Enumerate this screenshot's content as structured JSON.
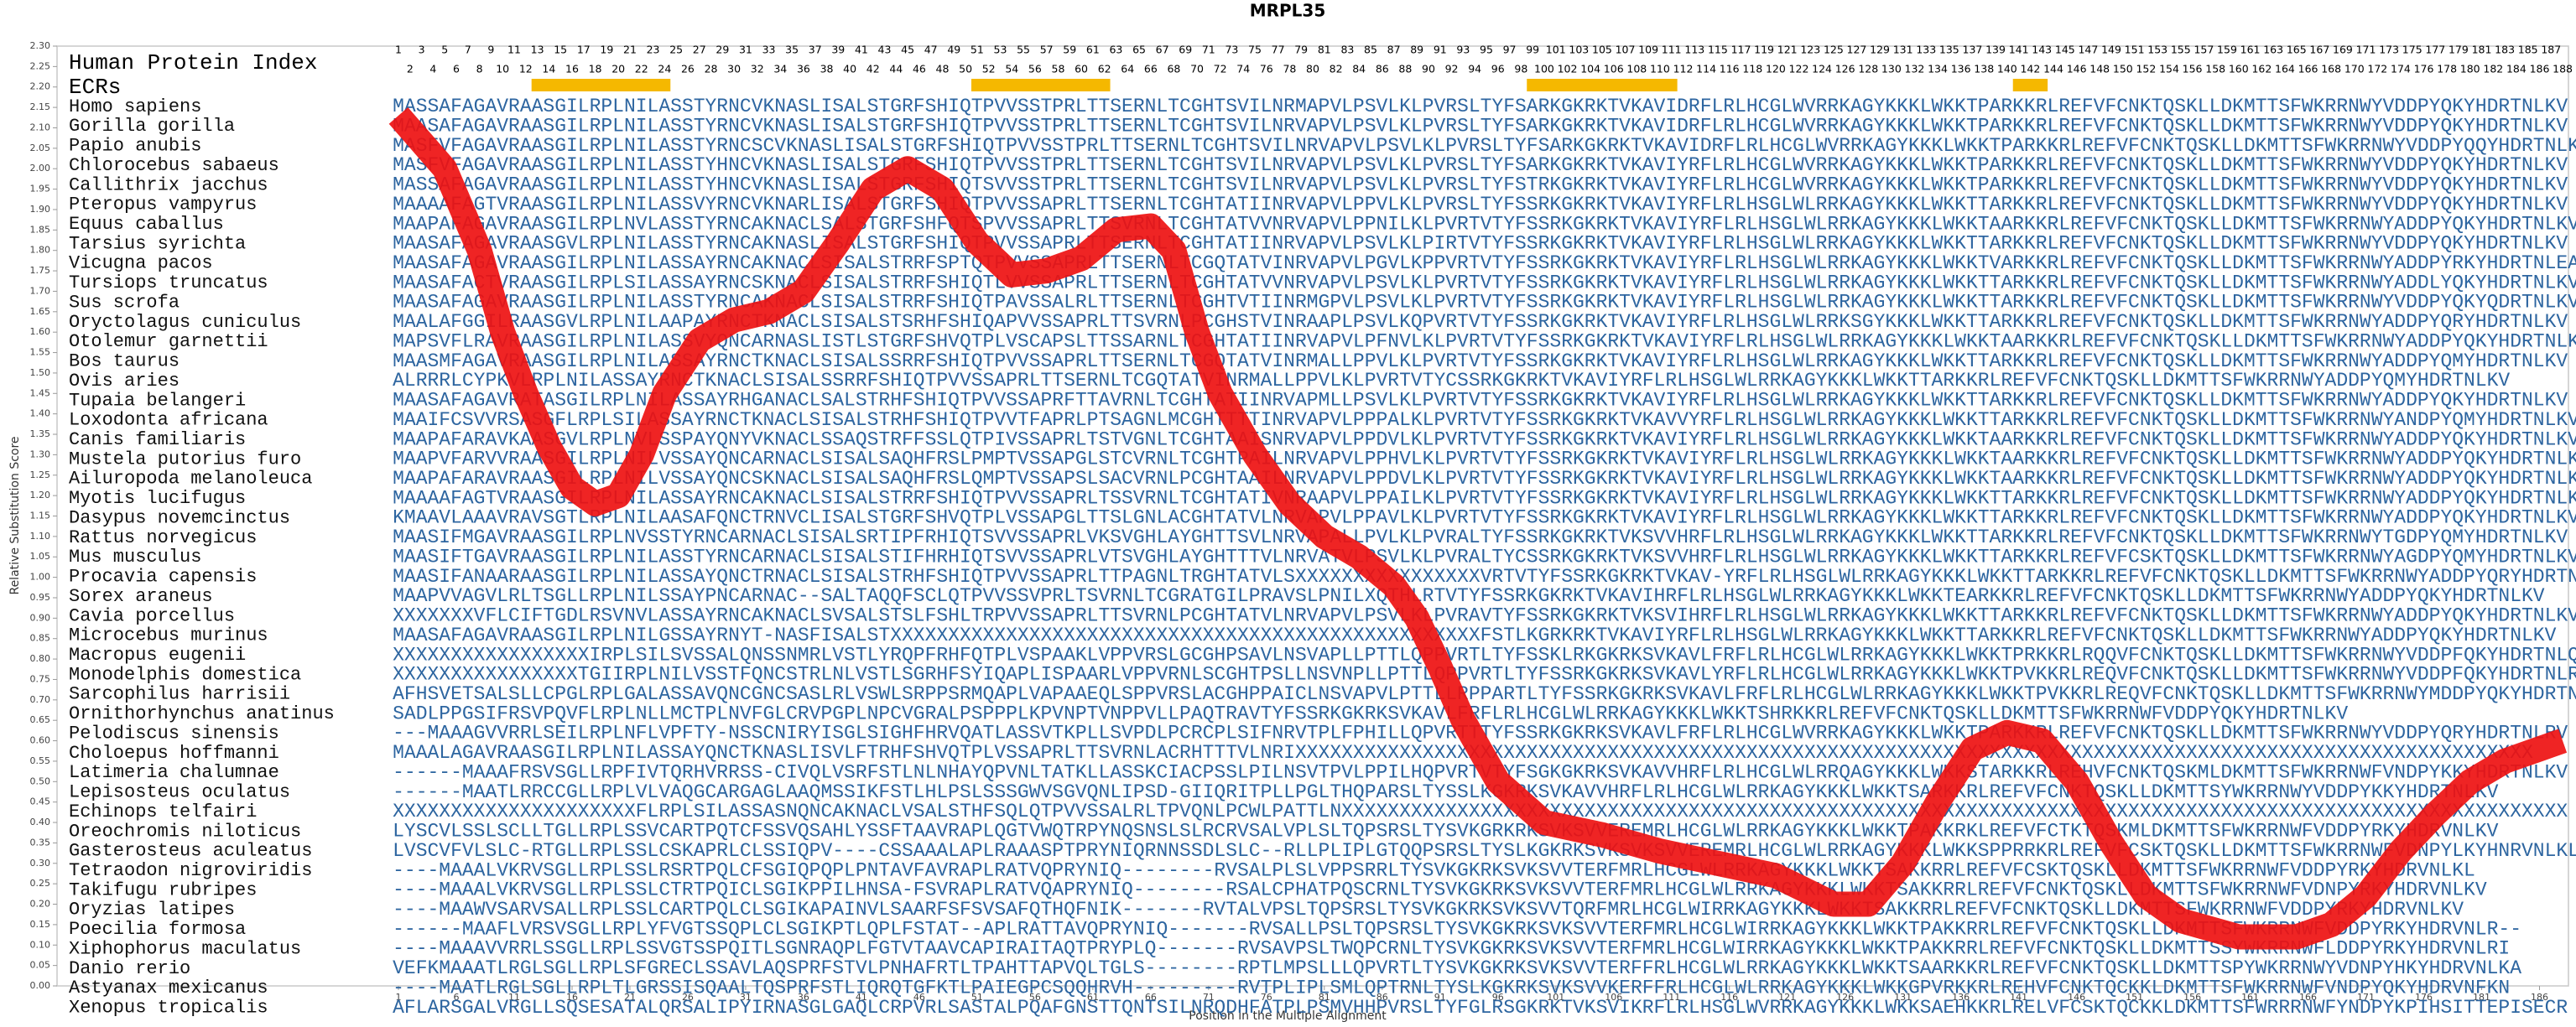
{
  "chart_data": {
    "type": "line",
    "title": "MRPL35",
    "xlabel": "Position in the Multiple Alignment",
    "ylabel": "Relative Substitution Score",
    "xlim": [
      -28.5,
      188.5
    ],
    "ylim": [
      0,
      2.3
    ],
    "xticks": [
      1,
      6,
      11,
      16,
      21,
      26,
      31,
      36,
      41,
      46,
      51,
      56,
      61,
      66,
      71,
      76,
      81,
      86,
      91,
      96,
      101,
      106,
      111,
      116,
      121,
      126,
      131,
      136,
      141,
      146,
      151,
      156,
      161,
      166,
      171,
      176,
      181,
      186
    ],
    "yticks": [
      {
        "value": 0,
        "label": "0.00"
      },
      {
        "value": 0.05,
        "label": "0.05"
      },
      {
        "value": 0.1,
        "label": "0.10"
      },
      {
        "value": 0.15,
        "label": "0.15"
      },
      {
        "value": 0.2,
        "label": "0.20"
      },
      {
        "value": 0.25,
        "label": "0.25"
      },
      {
        "value": 0.3,
        "label": "0.30"
      },
      {
        "value": 0.35,
        "label": "0.35"
      },
      {
        "value": 0.4,
        "label": "0.40"
      },
      {
        "value": 0.45,
        "label": "0.45"
      },
      {
        "value": 0.5,
        "label": "0.50"
      },
      {
        "value": 0.55,
        "label": "0.55"
      },
      {
        "value": 0.6,
        "label": "0.60"
      },
      {
        "value": 0.65,
        "label": "0.65"
      },
      {
        "value": 0.7,
        "label": "0.70"
      },
      {
        "value": 0.75,
        "label": "0.75"
      },
      {
        "value": 0.8,
        "label": "0.80"
      },
      {
        "value": 0.85,
        "label": "0.85"
      },
      {
        "value": 0.9,
        "label": "0.90"
      },
      {
        "value": 0.95,
        "label": "0.95"
      },
      {
        "value": 1,
        "label": "1.00"
      },
      {
        "value": 1.05,
        "label": "1.05"
      },
      {
        "value": 1.1,
        "label": "1.10"
      },
      {
        "value": 1.15,
        "label": "1.15"
      },
      {
        "value": 1.2,
        "label": "1.20"
      },
      {
        "value": 1.25,
        "label": "1.25"
      },
      {
        "value": 1.3,
        "label": "1.30"
      },
      {
        "value": 1.35,
        "label": "1.35"
      },
      {
        "value": 1.4,
        "label": "1.40"
      },
      {
        "value": 1.45,
        "label": "1.45"
      },
      {
        "value": 1.5,
        "label": "1.50"
      },
      {
        "value": 1.55,
        "label": "1.55"
      },
      {
        "value": 1.6,
        "label": "1.60"
      },
      {
        "value": 1.65,
        "label": "1.65"
      },
      {
        "value": 1.7,
        "label": "1.70"
      },
      {
        "value": 1.75,
        "label": "1.75"
      },
      {
        "value": 1.8,
        "label": "1.80"
      },
      {
        "value": 1.85,
        "label": "1.85"
      },
      {
        "value": 1.9,
        "label": "1.90"
      },
      {
        "value": 1.95,
        "label": "1.95"
      },
      {
        "value": 2,
        "label": "2.00"
      },
      {
        "value": 2.05,
        "label": "2.05"
      },
      {
        "value": 2.1,
        "label": "2.10"
      },
      {
        "value": 2.15,
        "label": "2.15"
      },
      {
        "value": 2.2,
        "label": "2.20"
      },
      {
        "value": 2.25,
        "label": "2.25"
      },
      {
        "value": 2.3,
        "label": "2.30"
      }
    ],
    "series": [
      {
        "color": "#ee1111",
        "x": [
          1,
          5,
          8,
          10,
          12,
          14,
          16,
          18,
          20,
          22,
          24,
          27,
          30,
          33,
          36,
          39,
          42,
          45,
          48,
          51,
          54,
          57,
          60,
          63,
          66,
          68,
          70,
          72,
          75,
          78,
          81,
          84,
          87,
          89,
          91,
          93,
          96,
          100,
          105,
          110,
          115,
          120,
          125,
          128,
          131,
          134,
          137,
          140,
          143,
          146,
          149,
          152,
          155,
          160,
          165,
          168,
          171,
          174,
          177,
          180,
          183,
          186,
          188
        ],
        "values": [
          2.13,
          2.0,
          1.8,
          1.6,
          1.45,
          1.32,
          1.22,
          1.18,
          1.2,
          1.3,
          1.45,
          1.58,
          1.63,
          1.65,
          1.7,
          1.82,
          1.95,
          2.0,
          1.95,
          1.82,
          1.74,
          1.75,
          1.78,
          1.85,
          1.86,
          1.8,
          1.6,
          1.45,
          1.3,
          1.18,
          1.1,
          1.05,
          0.98,
          0.9,
          0.78,
          0.65,
          0.5,
          0.4,
          0.37,
          0.33,
          0.3,
          0.27,
          0.2,
          0.2,
          0.3,
          0.45,
          0.58,
          0.62,
          0.6,
          0.5,
          0.35,
          0.22,
          0.16,
          0.12,
          0.12,
          0.15,
          0.22,
          0.33,
          0.42,
          0.5,
          0.55,
          0.58,
          0.6
        ]
      }
    ],
    "human_protein_index": {
      "label": "Human Protein Index",
      "positions": [
        1,
        2,
        3,
        4,
        5,
        6,
        7,
        8,
        9,
        10,
        11,
        12,
        13,
        14,
        15,
        16,
        17,
        18,
        19,
        20,
        21,
        22,
        23,
        24,
        25,
        26,
        27,
        28,
        29,
        30,
        31,
        32,
        33,
        34,
        35,
        36,
        37,
        38,
        39,
        40,
        41,
        42,
        43,
        44,
        45,
        46,
        47,
        48,
        49,
        50,
        51,
        52,
        53,
        54,
        55,
        56,
        57,
        58,
        59,
        60,
        61,
        62,
        63,
        64,
        65,
        66,
        67,
        68,
        69,
        70,
        71,
        72,
        73,
        74,
        75,
        76,
        77,
        78,
        79,
        80,
        81,
        82,
        83,
        84,
        85,
        86,
        87,
        88,
        89,
        90,
        91,
        92,
        93,
        94,
        95,
        96,
        97,
        98,
        99,
        100,
        101,
        102,
        103,
        104,
        105,
        106,
        107,
        108,
        109,
        110,
        111,
        112,
        113,
        114,
        115,
        116,
        117,
        118,
        119,
        120,
        121,
        122,
        123,
        124,
        125,
        126,
        127,
        128,
        129,
        130,
        131,
        132,
        133,
        134,
        135,
        136,
        137,
        138,
        139,
        140,
        141,
        142,
        143,
        144,
        145,
        146,
        147,
        148,
        149,
        150,
        151,
        152,
        153,
        154,
        155,
        156,
        157,
        158,
        159,
        160,
        161,
        162,
        163,
        164,
        165,
        166,
        167,
        168,
        169,
        170,
        171,
        172,
        173,
        174,
        175,
        176,
        177,
        178,
        179,
        180,
        181,
        182,
        183,
        184,
        185,
        186,
        187,
        188
      ]
    },
    "ecrs": {
      "label": "ECRs",
      "color": "#f5b800",
      "ranges": [
        [
          13,
          24
        ],
        [
          51,
          62
        ],
        [
          99,
          111
        ],
        [
          141,
          143
        ]
      ]
    },
    "alignment": {
      "species": [
        "Homo sapiens",
        "Gorilla gorilla",
        "Papio anubis",
        "Chlorocebus sabaeus",
        "Callithrix jacchus",
        "Pteropus vampyrus",
        "Equus caballus",
        "Tarsius syrichta",
        "Vicugna pacos",
        "Tursiops truncatus",
        "Sus scrofa",
        "Oryctolagus cuniculus",
        "Otolemur garnettii",
        "Bos taurus",
        "Ovis aries",
        "Tupaia belangeri",
        "Loxodonta africana",
        "Canis familiaris",
        "Mustela putorius furo",
        "Ailuropoda melanoleuca",
        "Myotis lucifugus",
        "Dasypus novemcinctus",
        "Rattus norvegicus",
        "Mus musculus",
        "Procavia capensis",
        "Sorex araneus",
        "Cavia porcellus",
        "Microcebus murinus",
        "Macropus eugenii",
        "Monodelphis domestica",
        "Sarcophilus harrisii",
        "Ornithorhynchus anatinus",
        "Pelodiscus sinensis",
        "Choloepus hoffmanni",
        "Latimeria chalumnae",
        "Lepisosteus oculatus",
        "Echinops telfairi",
        "Oreochromis niloticus",
        "Gasterosteus aculeatus",
        "Tetraodon nigroviridis",
        "Takifugu rubripes",
        "Oryzias latipes",
        "Poecilia formosa",
        "Xiphophorus maculatus",
        "Danio rerio",
        "Astyanax mexicanus",
        "Xenopus tropicalis"
      ],
      "sequences": [
        "MASSAFAGAVRAASGILRPLNILASSTYRNCVKNASLISALSTGRFSHIQTPVVSSTPRLTTSERNLTCGHTSVILNRMAPVLPSVLKLPVRSLTYFSARKGKRKTVKAVIDRFLRLHCGLWVRRKAGYKKKLWKKTPARKKRLREFVFCNKTQSKLLDKMTTSFWKRRNWYVDDPYQKYHDRTNLKV",
        "MAASAFAGAVRAASGILRPLNILASSTYRNCVKNASLISALSTGRFSHIQTPVVSSTPRLTTSERNLTCGHTSVILNRVAPVLPSVLKLPVRSLTYFSARKGKRKTVKAVIDRFLRLHCGLWVRRKAGYKKKLWKKTPARKKRLREFVFCNKTQSKLLDKMTTSFWKRRNWYVDDPYQKYHDRTNLKV",
        "MASFVFAGAVRAASGILRPLNILASSTYRNCSCVKNASLISALSTGRFSHIQTPVVSSTPRLTTSERNLTCGHTSVILNRVAPVLPSVLKLPVRSLTYFSARKGKRKTVKAVIDRFLRLHCGLWVRRKAGYKKKLWKKTPARKKRLREFVFCNKTQSKLLDKMTTSFWKRRNWYVDDPYQQYHDRTNLKV",
        "MASFVFAGAVRAASGILRPLNILASSTYHNCVKNASLISALSTGRFSHIQTPVVSSTPRLTTSERNLTCGHTSVILNRVAPVLPSVLKLPVRSLTYFSARKGKRKTVKAVIYRFLRLHCGLWVRRKAGYKKKLWKKTPARKKRLREFVFCNKTQSKLLDKMTTSFWKRRNWYVDDPYQKYHDRTNLKV",
        "MASSAFAGAVRAASGILRPLNILASSTYHNCVKNASLISALSTGRFSHIQTSVVSSTPRLTTSERNLTCGHTSVILNRVAPVLPSVLKLPVRSLTYFSTRKGKRKTVKAVIYRFLRLHCGLWVRRKAGYKKKLWKKTPARKKRLREFVFCNKTQSKLLDKMTTSFWKRRNWYVDDPYQKYHDRTNLKV",
        "MAAAAFAGTVRAASGILRPLNILASSVYRNCVKNARLISALSTGRFSHIQTPVVSSAPRLTTSERNLTCGHTATIINRVAPVLPPVLKLPVRSLTYFSSRKGKRKTVKAVIYRFLRLHSGLWLRRKAGYKKKLWKKTTARKKRLREFVFCNKTQSKLLDKMTTSFWKRRNWYVDDPYQKYHDRTNLKV",
        "MAAPAFAGAVRAASGILRPLNVLASSTYRNCAKNACLSALSTGRFSHFQTSPVVSSAPRLTTSVRNLTCGHTATVVNRVAPVLPPNILKLPVRTVTYFSSRKGKRKTVKAVIYRFLRLHSGLWLRRKAGYKKKLWKKTAARKKRLREFVFCNKTQSKLLDKMTTSFWKRRNWYADDPYQKYHDRTNLKV",
        "MAASAFAGAVRAASGVLRPLNILASSTYRNCAKNASLISALSTGRFSHIQTPVVSSAPRLTTSERNLTCGHTATIINRVAPVLPSVLKLPIRTVTYFSSRKGKRKTVKAVIYRFLRLHSGLWLRRKAGYKKKLWKKTTARKKRLREFVFCNKTQSKLLDKMTTSFWKRRNWYVDDPYQKYHDRTNLKV",
        "MAASAFAGAVRAASGILRPLNILASSAYRNCAKNACLSISALSTRRFSPTQTPVVSSAPRLTTSERNLTCGQTATVINRVAPVLPGVLKPPVRTVTYFSSRKGKRKTVKAVIYRFLRLHSGLWLRRKAGYKKKLWKKTVARKKRLREFVFCNKTQSKLLDKMTTSFWKRRNWYADDPYRKYHDRTNLEA",
        "MAASAFACTVRAASGILRPLSILASSAYRNCSKNACLSISALSTRRFSHIQTLVVSSAPRLTTSERNLTCGHTATVVNRVAPVLPSVLKLPVRTVTYFSSRKGKRKTVKAVIYRFLRLHSGLWLRRKAGYKKKLWKKTTARKKRLREFVFCNKTQSKLLDKMTTSFWKRRNWYADDLYQKYHDRTNLKV",
        "MAASAFAGAVRAASGILRPLNILASSTYRNCAKNACLSISALSTRRFSHIQTPAVSSALRLTTSERNLTCGHTVTIINRMGPVLPSVLKLPVRTVTYFSSRKGKRKTVKAVIYRFLRLHSGLWLRRKAGYKKKLWKKTTARKKRLREFVFCNKTQSKLLDKMTTSFWKRRNWYVDDPYQKYQDRTNLKV",
        "MAALAFGGILRAASGVLRPLNILAAPAYRNCTKNACLSISALSTSRHFSHIQAPVVSSAPRLTTSVRNLPCGHSTVINRAAPLPSVLKQPVRTVTYFSSRKGKRKTVKAVIYRFLRLHSGLWLRRKSGYKKKLWKKTTARKKRLREFVFCNKTQSKLLDKMTTSFWKRRNWYADDPYQRYHDRTNLKV",
        "MAPSVFLRAVRAASGILRPLNILASSVYQNCARNASLISTLSTGRFSHVQTPLVSCAPSLTTSSARNLTCGHTATIINRVAPVLPFNVLKLPVRTVTYFSSRKGKRKTVKAVIYRFLRLHSGLWLRRKAGYKKKLWKKTAARKKRLREFVFCNKTQSKLLDKMTTSFWKRRNWYADDPYQKYHDRTNLKV",
        "MAASMFAGAVRAASGILRPLNILASSAYRNCTKNACLSISALSSRRFSHIQTPVVSSAPRLTTSERNLTCGQTATVINRMALLPPVLKLPVRTVTYFSSRKGKRKTVKAVIYRFLRLHSGLWLRRKAGYKKKLWKKTTARKKRLREFVFCNKTQSKLLDKMTTSFWKRRNWYADDPYQMYHDRTNLKV",
        "ALRRRLCYPKVLRPLNILASSAYRNCTKNACLSISALSSRRFSHIQTPVVSSAPRLTTSERNLTCGQTATVINRMALLPPVLKLPVRTVTYCSSRKGKRKTVKAVIYRFLRLHSGLWLRRKAGYKKKLWKKTTARKKRLREFVFCNKTQSKLLDKMTTSFWKRRNWYADDPYQMYHDRTNLKV",
        "MAASAFAGAVRATASGILRPLNILASSAYRHGANACLSALSTRHFSHIQTPVVSSAPRFTTAVRNLTCGHTATIINRVAPMLLPSVLKLPVRTVTYFSSRKGKRKTVKAVIYRFLRLHSGLWLRRKAGYKKKLWKKTTARKKRLREFVFCNKTQSKLLDKMTTSFWKRRNWYADDPYQKYHDRTNLKV",
        "MAAIFCSVVRSASGFLRPLSILASSAYRNCTKNACLSISALSTRHFSHIQTPVVTFAPRLPTSAGNLMCGHTTTTINRVAPVLPPPALKLPVRTVTYFSSRKGKRKTVKAVVYRFLRLHSGLWLRRKAGYKKKLWKKTTARKKRLREFVFCNKTQSKLLDKMTTSFWKRRNWYANDPYQMYHDRTNLKV",
        "MAAPAFARAVKAASGVLRPLNVLSSPAYQNYVKNACLSSAQSTRFFSSLQTPIVSSAPRLTSTVGNLTCGHTAAISNRVAPVLPPDVLKLPVRTVTYFSSRKGKRKTVKAVIYRFLRLHSGLWLRRKAGYKKKLWKKTAARKKRLREFVFCNKTQSKLLDKMTTSFWKRRNWYADDPYQKYHDRTNLKV",
        "MAAPVFARVVRAASGILRPLNILVSSAYQNCARNACLSISALSAQHFRSLPMPTVSSAPGLSTCVRNLTCGHTPAILNRVAPVLPPHVLKLPVRTVTYFSSRKGKRKTVKAVIYRFLRLHSGLWLRRKAGYKKKLWKKTAARKKRLREFVFCNKTQSKLLDKMTTSFWKRRNWYADDPYQKYHDRTNLKV",
        "MAAPAFARAVRAASGILRPLNILVSSAYQNCSKNACLSISALSAQHFRSLQMPTVSSAPSLSACVRNLPCGHTAAILNRVAPVLPPDVLKLPVRTVTYFSSRKGKRKTVKAVIYRFLRLHSGLWLRRKAGYKKKLWKKTAARKKRLREFVFCNKTQSKLLDKMTTSFWKRRNWYADDPYQKYHDRTNLKV",
        "MAAAAFAGTVRAASGILRPLNILASSAYRNCAKNACLSISALSTRRFSHIQTPVVSSAPRLTSSVRNLTCGHTATIVNRAAPVLPPAILKLPVRTVTYFSSRKGKRKTVKAVIYRFLRLHSGLWLRRKAGYKKKLWKKTTARKKRLREFVFCNKTQSKLLDKMTTSFWKRRNWYADDPYQKYHDRTNLKV",
        "KMAAVLAAAVRAVSGTLRPLNILAASAFQNCTRNVCLISALSTGRFSHVQTPLVSSAPGLTTSLGNLACGHTATVLNRVAPVLPPAVLKLPVRTVTYFSSRKGKRKTVKAVIYRFLRLHSGLWLRRKAGYKKKLWKKTTARKKRLREFVFCNKTQSKLLDKMTTSFWKRRNWYADDPYQKYHDRTNLKV",
        "MAASIFMGAVRAASGILRPLNVSSTYRNCARNACLSISALSRTIPFRHIQTSVVSSAPRLVKSVGHLAYGHTTSVLNRVAPALLPVLKLPVRALTYFSSRKGKRKTVKSVVHRFLRLHSGLWLRRKAGYKKKLWKKTTARKKRLREFVFCNKTQSKLLDKMTTSFWKRRNWYTGDPYQMYHDRTNLKV",
        "MAASIFTGAVRAASGILRPLNILASSTYRNCARNACLSISALSTIFHRHIQTSVVSSAPRLVTSVGHLAYGHTTTVLNRVATVLPSVLKLPVRALTYCSSRKGKRKTVKSVVHRFLRLHSGLWLRRKAGYKKKLWKKTTARKKRLREFVFCSKTQSKLLDKMTTSFWKRRNWYAGDPYQMYHDRTNLKV",
        "MAASIFANAARAASGILRPLNILASSAYQNCTRNACLSISALSTRHFSHIQTPVVSSAPRLTTPAGNLTRGHTATVLSXXXXXXXXXXXXXXXXVRTVTYFSSRKGKRKTVKAV-YRFLRLHSGLWLRRKAGYKKKLWKKTTARKKRLREFVFCNKTQSKLLDKMTTSFWKRRNWYADDPYQRYHDRTNLKV",
        "MAAPVVAGVLRLTSGLLRPLNILSSAYPNCARNAC--SALTAQQFSCLQTPVVSSVPRLTSVRNLTCGRATGILPRAVSLPNILXQTHLRTVTYFSSRKGKRKTVKAVIHRFLRLHSGLWLRRKAGYKKKLWKKTEARKKRLREFVFCNKTQSKLLDKMTTSFWKRRNWYADDPYQKYHDRTNLKV",
        "XXXXXXXVFLCIFTGDLRSVNVLASSAYRNCAKNACLSVSALSTSLFSHLTRPVVSSAPRLTTSVRNLPCGHTATVLNRVAPVLPSVLKLPVRAVTYFSSRKGKRKTVKSVIHRFLRLHSGLWLRRKAGYKKKLWKKTTARKKRLREFVFCNKTQSKLLDKMTTSFWKRRNWYADDPYQKYHDRTNLKV",
        "MAASAFAGAVRAASGILRPLNILGSSAYRNYT-NASFISALSTXXXXXXXXXXXXXXXXXXXXXXXXXXXXXXXXXXXXXXXXXXXXXXXXXXXFSTLKGRKRKTVKAVIYRFLRLHSGLWLRRKAGYKKKLWKKTTARKKRLREFVFCNKTQSKLLDKMTTSFWKRRNWYADDPYQKYHDRTNLKV",
        "XXXXXXXXXXXXXXXXXIRPLSILSVSSALQNSSNMRLVSTLYRQPFRHFQTPLVSPAAKLVPPVRSLGCGHPSAVLNSVAPLLPTTLQPPVRTLTYFSSKLRKGKRKSVKAVLFRFLRLHCGLWLRRKAGYKKKLWKKTPRKKRLRQQVFCNKTQSKLLDKMTTSFWKRRNWYVDDPFQKYHDRTNLQV",
        "XXXXXXXXXXXXXXXXTGIIRPLNILVSSTFQNCSTRLNLVSTLSGRHFSYIQAPLISPAARLVPPVRNLSCGHTPSLLNSVNPLLPTTLQPPVRTLTYFSSRKGKRKSVKAVLYRFLRLHCGLWLRRKAGYKKKLWKKTPVKKRLREQVFCNKTQSKLLDKMTTSFWKRRNWYVDDPFQKYHDRTNLRL",
        "AFHSVETSALSLLCPGLRPLGALASSAVQNCGNCSASLRLVSWLSRPPSRMQAPLVAPAAEQLSPPVRSLACGHPPAICLNSVAPVLPTTLLRPPARTLTYFSSRKGKRKSVKAVLFRFLRLHCGLWLRRKAGYKKKLWKKTPVKKRLREQVFCNKTQSKLLDKMTTSFWKRRNWYMDDPYQKYHDRTNLRV",
        "SADLPPGSIFRSVPQVFLRPLNLLMCTPLNVFGLCRVPGPLNPCVGRALPSPPPLKPVNPTVNPPVLLPAQTRAVTYFSSRKGKRKSVKAVLFRFLRLHCGLWLRRKAGYKKKLWKKTSHRKKRLREFVFCNKTQSKLLDKMTTSFWKRRNWFVDDPYQKYHDRTNLKV",
        "---MAAAGVVRRLSEILRPLNFLVPFTY-NSSCNIRYISGLSIGHFHRVQATLASSVTKPLLSVPDLPCRCPLSIFNRVTPLFPHILLQPVRTTTYFSSRKGKRKSVKAVLFRFLRLHCGLWVRRKAGYKKKLWKKTPARKKRLREFVFCNKTQSKLLDKMTTSFWKRRNWYVDDPYQRYHDRTNLRV",
        "MAAALAGAVRAASGILRPLNILASSAYQNCTKNASLISVLFTRHFSHVQTPLVSSAPRLTTSVRNLACRHTTTVLNRIXXXXXXXXXXXXXXXXXXXXXXXXXXXXXXXXXXXXXXXXXXXXXXXXXXXXXXXXXXXXXXXXXXXXXXXXXXXXXXXXXXXXXXXXXXXXXXXXXXXXXXXXXXX",
        "------MAAAFRSVSGLLRPFIVTQRHVRRSS-CIVQLVSRFSTLNLNHAYQPVNLTATKLLASSKCIACPSSLPILNSVTPVLPPILHQPVRTVTYFSGKGKRKSVKAVVHRFLRLHCGLWLRRQAGYKKKLWKKSTARKKRLREHVFCNKTQSKMLDKMTTSFWKRRNWFVNDPYKKYHDRTNLKV",
        "------MAATLRRCCGLLRPLVLVAQGCARGAGLAAQMSSIKFSTLHLPSLSSSGWVSGVQNLIPSD-GIIQRITPLLPGLTHQPARSLTYSSLKGKRKSVKAVVHRFLRLHCGLWLRRKAGYKKKLWKKTSARKKRLREFVFCNKTQSKLLDKMTTSYWKRRNWYVDDPYKKYHDRTNLKV",
        "XXXXXXXXXXXXXXXXXXXXXFLRPLSILASSASNQNCAKNACLVSALSTHFSQLQTPVVSSALRLTPVQNLPCWLPATTLNXXXXXXXXXXXXXXXXXXXXXXXXXXXXXXXXXXXXXXXXXXXXXXXXXXXXXXXXXXXXXXXXXXXXXXXXXXXXXXXXXXXXXXXXXXXXXXXXXXXXXXXXXX",
        "LYSCVLSSLSCLLTGLLRPLSSVCARTPQTCFSSVQSAHLYSSFTAAVRAPLQGTVWQTRPYNQSNSLSLRCRVSALVPLSLTQPSRSLTYSVKGRKRKSVKSVVEREMRLHCGLWLRRKAGYKKKLWKKTPAKKRKLREFVFCTKTQSKMLDKMTTSFWKRRNWFVDDPYRKYHDRVNLKV",
        "LVSCVFVLSLC-RTGLLRPLSSLCSKAPRLCLSSIQPV----CSSAAALAPLRAAASPTPRYNIQRNNSSDLSLC--RLLPLIPLGTQQPSRSLTYSLKGKRKSVKSVKSVVEREMRLHCGLWLRRKAGYKKKLWKKSPPRRKRLREFVFCSKTQSKLLDKMTTSFWKRRNWFVDNPYLKYHNRVNLKL",
        "----MAAALVKRVSGLLRPLSSLRSRTPQLCFSGIQPQPLPNTAVFAVRAPLRATVQPRYNIQ--------RVSALPLSLVPPSRRLTYSVKGKRKSVKSVVTERFMRLHCGLWLRRKAGYKKKLWKKTSAKKRRLREFVFCSKTQSKLLDKMTTSFWKRRNWFVDDPYRKYHDRVNLKL",
        "----MAAALVKRVSGLLRPLSSLCTRTPQICLSGIKPPILHNSA-FSVRAPLRATVQAPRYNIQ--------RSALCPHATPQSCRNLTYSVKGKRKSVKSVVTERFMRLHCGLWLRRKAGYKKKLWKKTSAKKRRLREFVFCNKTQSKLLDKMTTSFWKRRNWFVDNPYRKYHDRVNLKV",
        "----MAAWVSARVSALLRPLSSLCARTPQLCLSGIKAPAINVLSAARFSFSVSAFQTHQFNIK-------RVTALVPSLTQPSRSLTYSVKGKRKSVKSVVTQRFMRLHCGLWIRRKAGYKKKLWKKTSAKKRRLREFVFCNKTQSKLLDKMTTSFWKRRNWFVDDPYRKYHDRVNLKV",
        "------MAAFLVRSVSGLLRPLYFVGTSSQPLCLSGIKPTLQPLFSTAT--APLRATTAVQPRYNIQ-------RVSALLPSLTQPSRSLTYSVKGKRKSVKSVVTERFMRLHCGLWIRRKAGYKKKLWKKTPAKKRRLREFVFCNKTQSKLLDKMTTSFWKRRNWFVDDPYRKYHDRVNLR--",
        "----MAAAVVRRLSSGLLRPLSSVGTSSPQITLSGNRAQPLFGTVTAAVCAPIRAITAQTPRYPLQ-------RVSAVPSLTWQPCRNLTYSVKGKRKSVKSVVTERFMRLHCGLWIRRKAGYKKKLWKKTPAKKRRLREFVFCNKTQSKLLDKMTTSSYWKRRNWFLDDPYRKYHDRVNLRI",
        "VEFKMAAATLRGLSGLLRPLSFGRECLSSAVLAQSPRFSTVLPNHAFRTLTPAHTTAPVQLTGLS--------RPTLMPSLLLQPVRTLTYSVKGKRKSVKSVVTERFFRLHCGLWLRRKAGYKKKLWKKTSAARKKRLREFVFCNKTQSKLLDKMTTSPYWKRRNWYVDNPYHKYHDRVNLKA",
        "----MAATLRGLSGLLRPLTLGRSSISQAALTQSPRFSTLIQRQTGFKTLPAIEGPCSQQHRVH---------RVTPLIPLSMLQPTRNLTYSLKGKRKSVKSVVKERFFRLHCGLWLRRKAGYKKKLWKKGPVRKKRLREHVFCNKTQCKKLDKMTTSFWKRRNWFVNDPYQKYHDRVNFKN",
        "AFLARSGALVRGLLSQSESATALQRSALIPYIRNASGLGAQLCRPVRLSASTALPQAFGNSTTQNTSILNRQDHFATPLPSMVHHPVRSLTYFGLRSGKRKTVKSVIKRFLRLHSGLWVRRKAGYKKKLWKKSAEHKKRLRELVFCSKTQCKKLDKMTTSFWRRRNWFYNDPYKPIHSITTEPISECR"
      ]
    }
  }
}
